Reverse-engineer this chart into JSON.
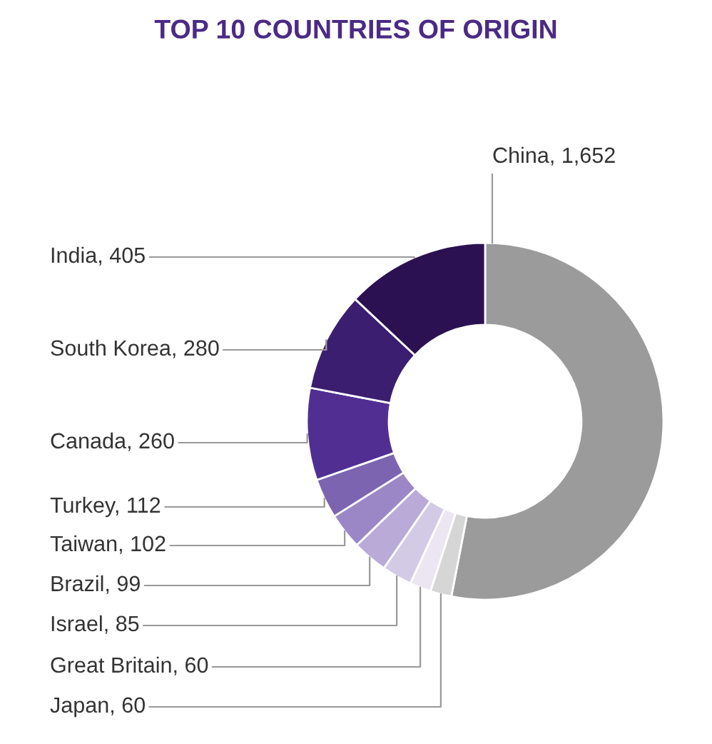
{
  "chart_data": {
    "type": "donut",
    "title": "TOP 10 COUNTRIES OF ORIGIN",
    "categories": [
      "China",
      "Japan",
      "Great Britain",
      "Israel",
      "Brazil",
      "Taiwan",
      "Turkey",
      "Canada",
      "South Korea",
      "India"
    ],
    "values": [
      1652,
      60,
      60,
      85,
      99,
      102,
      112,
      260,
      280,
      405
    ],
    "value_labels": [
      "1,652",
      "60",
      "60",
      "85",
      "99",
      "102",
      "112",
      "260",
      "280",
      "405"
    ],
    "colors": [
      "#9b9b9b",
      "#d6d6d6",
      "#ebe6f2",
      "#d3cae6",
      "#b9aad8",
      "#9c87c6",
      "#7c64b0",
      "#512f92",
      "#3b1e6f",
      "#2b1152"
    ]
  }
}
